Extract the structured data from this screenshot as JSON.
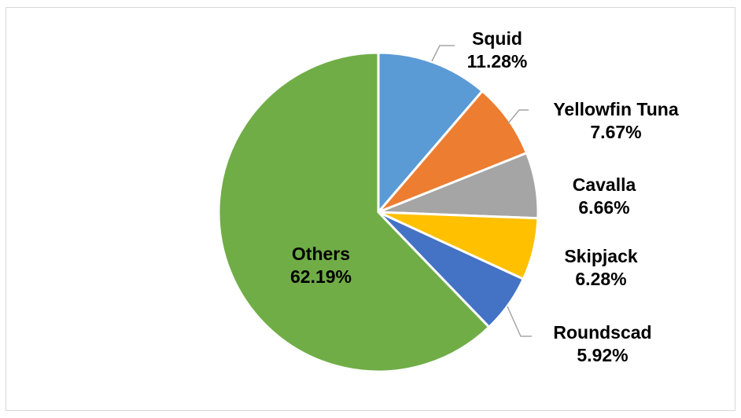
{
  "chart_data": {
    "type": "pie",
    "title": "",
    "start_angle_deg": 0,
    "direction": "clockwise",
    "slices": [
      {
        "label": "Squid",
        "value": 11.28,
        "value_label": "11.28%",
        "color": "#5b9bd5"
      },
      {
        "label": "Yellowfin Tuna",
        "value": 7.67,
        "value_label": "7.67%",
        "color": "#ed7d31"
      },
      {
        "label": "Cavalla",
        "value": 6.66,
        "value_label": "6.66%",
        "color": "#a5a5a5"
      },
      {
        "label": "Skipjack",
        "value": 6.28,
        "value_label": "6.28%",
        "color": "#ffc000"
      },
      {
        "label": "Roundscad",
        "value": 5.92,
        "value_label": "5.92%",
        "color": "#4472c4"
      },
      {
        "label": "Others",
        "value": 62.19,
        "value_label": "62.19%",
        "color": "#70ad47"
      }
    ],
    "legend": "none",
    "data_labels": "outside with leader lines; Others label inside"
  }
}
